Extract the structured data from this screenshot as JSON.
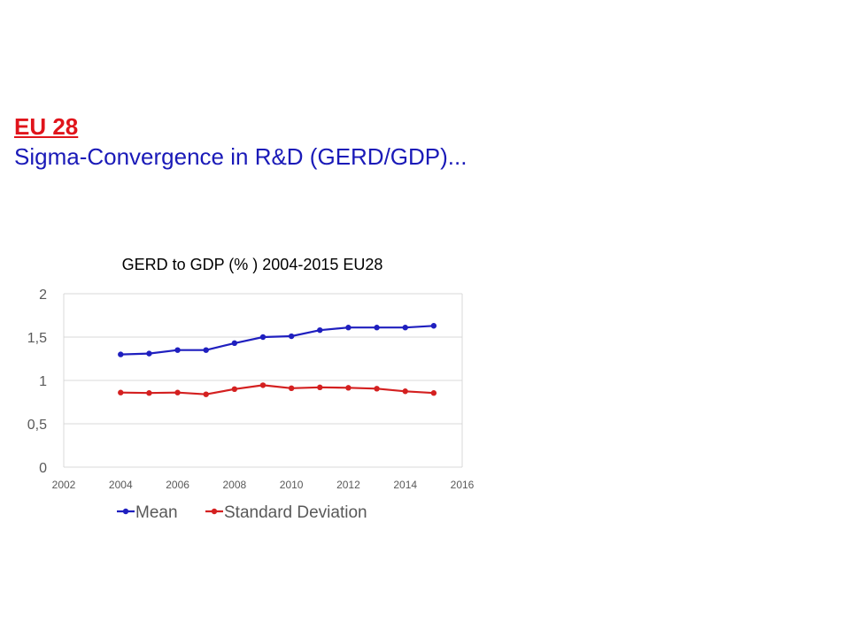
{
  "slide": {
    "heading": "EU 28",
    "subheading": "Sigma-Convergence in R&D (GERD/GDP)..."
  },
  "chart_data": {
    "type": "scatter",
    "title": "GERD to GDP (% ) 2004-2015 EU28",
    "xlim": [
      2002,
      2016
    ],
    "ylim": [
      0,
      2
    ],
    "x_ticks": [
      "2002",
      "2004",
      "2006",
      "2008",
      "2010",
      "2012",
      "2014",
      "2016"
    ],
    "y_ticks": [
      "0",
      "0,5",
      "1",
      "1,5",
      "2"
    ],
    "x": [
      2004,
      2005,
      2006,
      2007,
      2008,
      2009,
      2010,
      2011,
      2012,
      2013,
      2014,
      2015
    ],
    "series": [
      {
        "name": "Mean",
        "color": "#1f1fbf",
        "values": [
          1.3,
          1.31,
          1.35,
          1.35,
          1.43,
          1.5,
          1.51,
          1.58,
          1.61,
          1.61,
          1.61,
          1.63
        ]
      },
      {
        "name": "Standard Deviation",
        "color": "#d42020",
        "values": [
          0.86,
          0.855,
          0.86,
          0.84,
          0.9,
          0.945,
          0.91,
          0.92,
          0.915,
          0.905,
          0.875,
          0.855
        ]
      }
    ],
    "grid": "horizontal",
    "legend": "bottom",
    "markers": true,
    "lines": true
  }
}
